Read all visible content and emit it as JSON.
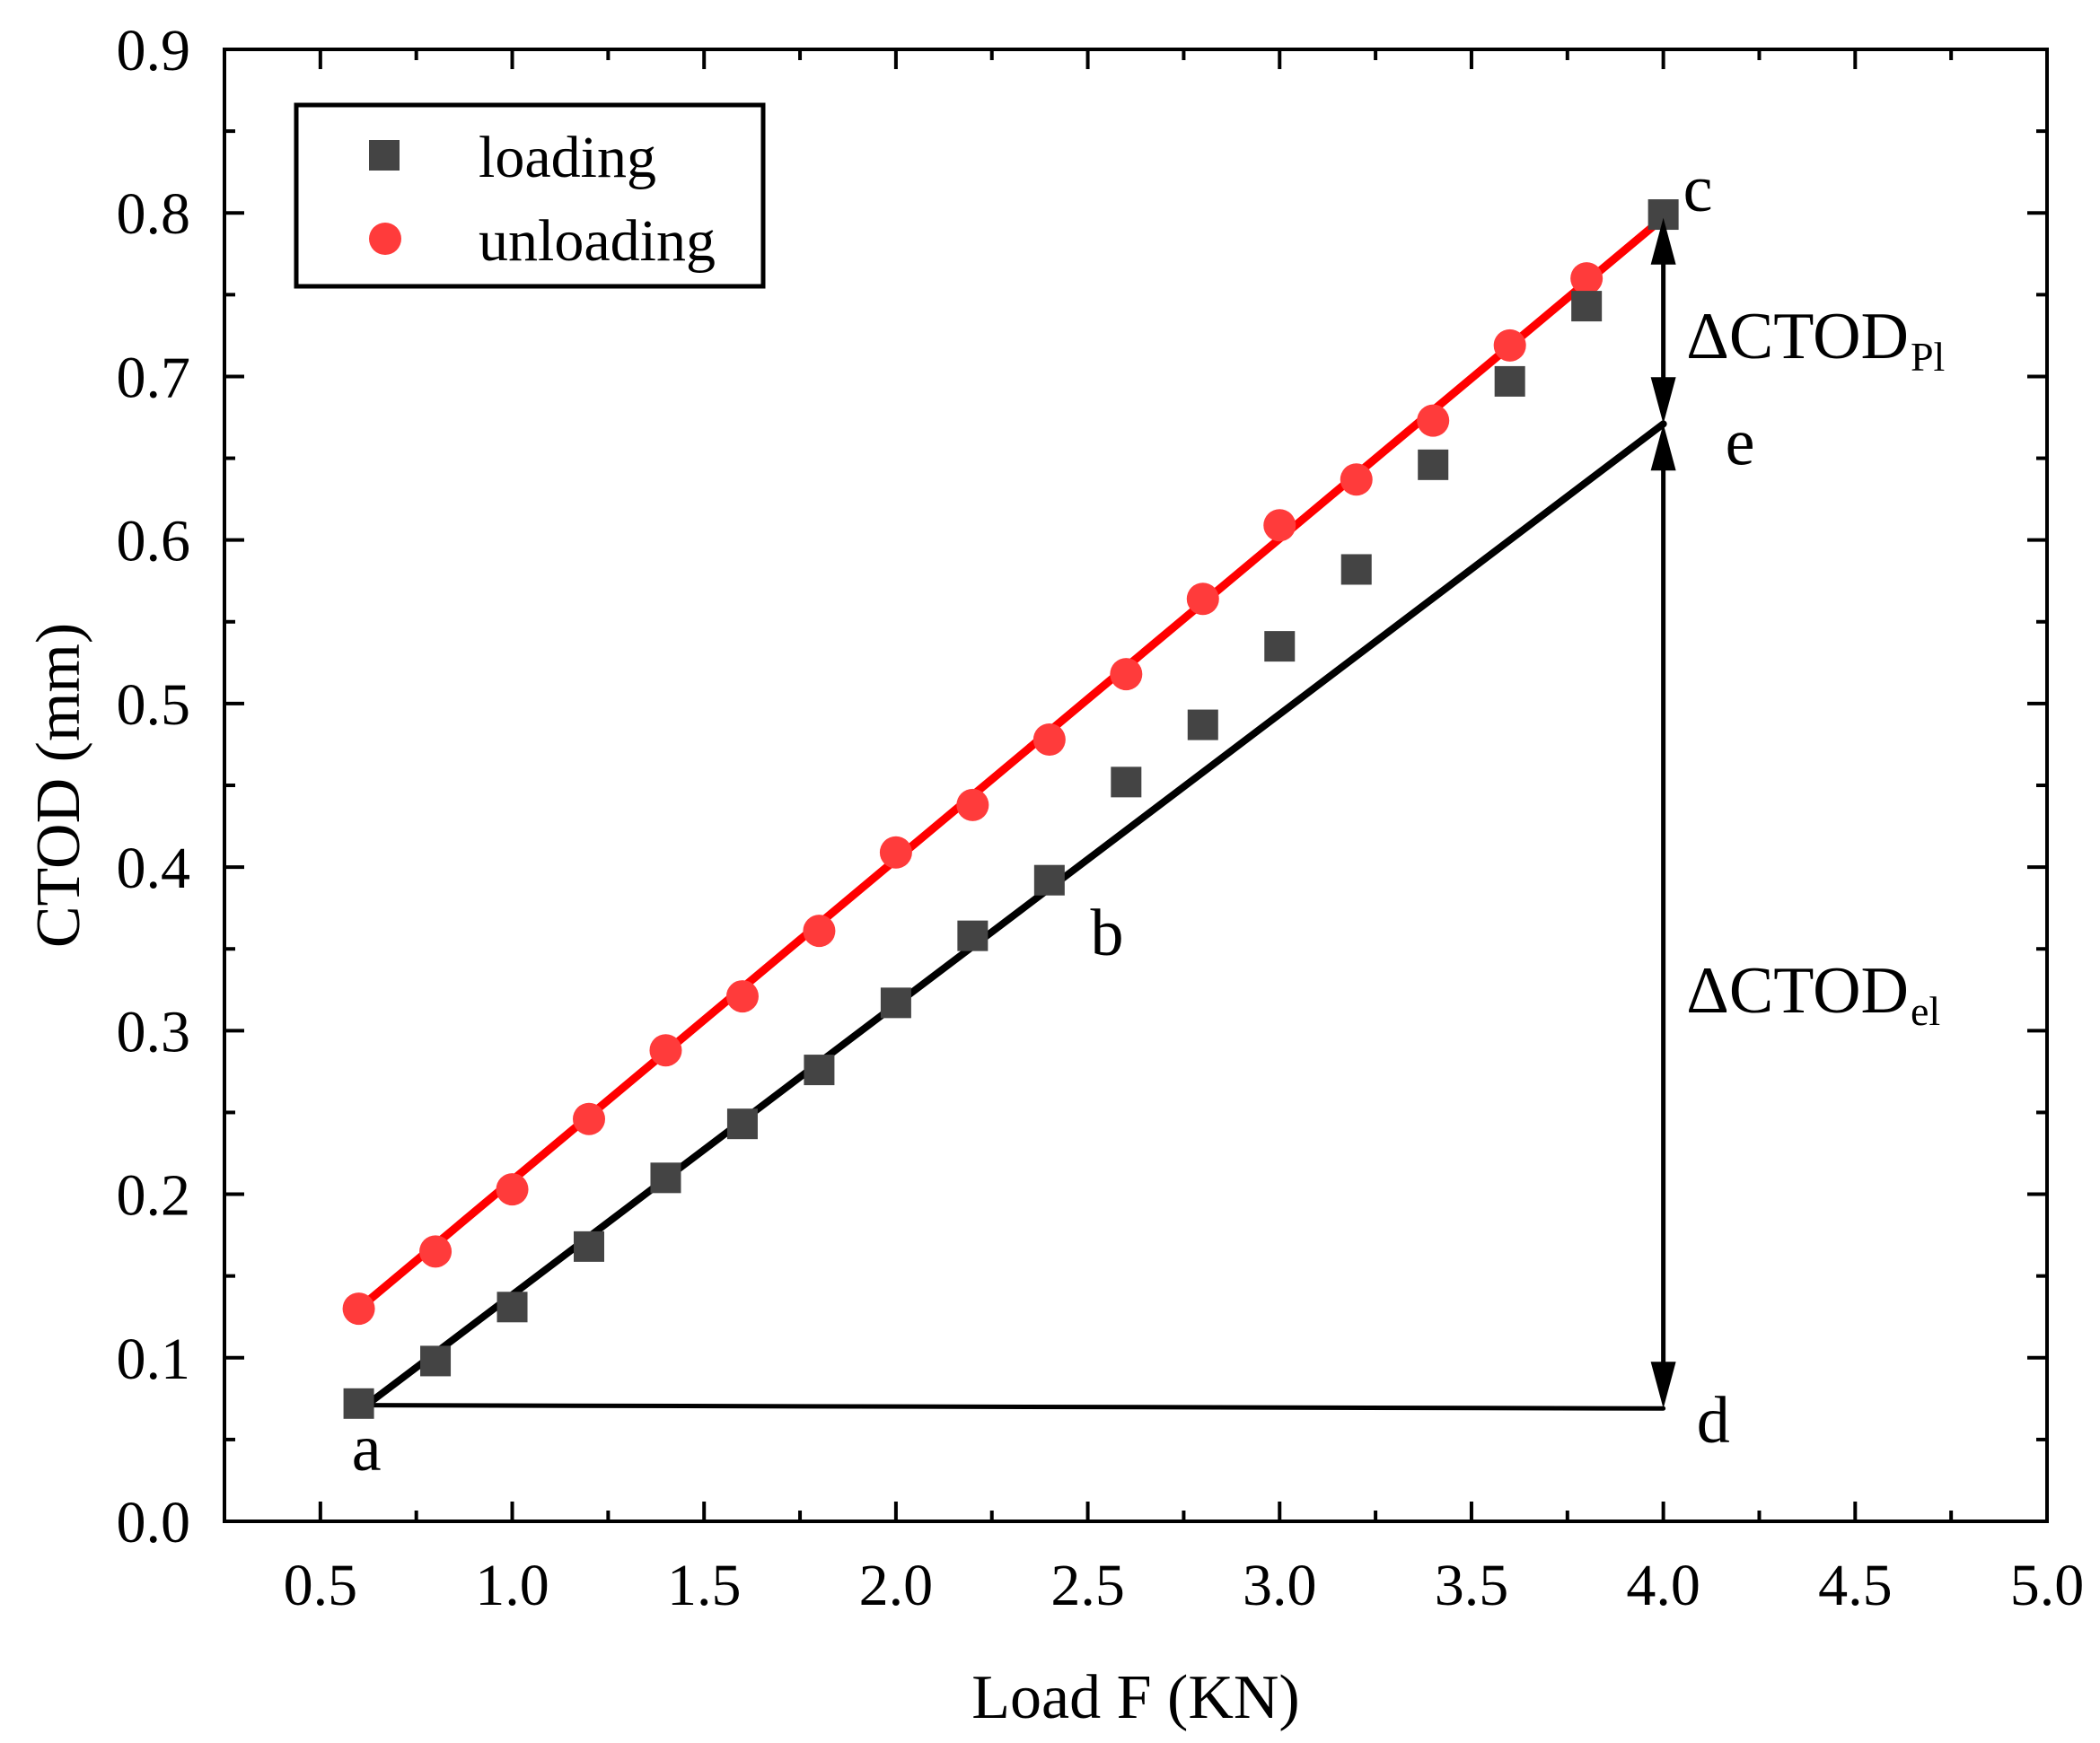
{
  "chart_data": {
    "type": "scatter",
    "title": "",
    "xlabel": "Load F (KN)",
    "ylabel": "CTOD (mm)",
    "xlim": [
      0.25,
      5.0
    ],
    "ylim": [
      0.0,
      0.9
    ],
    "x_ticks": [
      0.5,
      1.0,
      1.5,
      2.0,
      2.5,
      3.0,
      3.5,
      4.0,
      4.5,
      5.0
    ],
    "x_tick_labels": [
      "0.5",
      "1.0",
      "1.5",
      "2.0",
      "2.5",
      "3.0",
      "3.5",
      "4.0",
      "4.5",
      "5.0"
    ],
    "y_ticks": [
      0.0,
      0.1,
      0.2,
      0.3,
      0.4,
      0.5,
      0.6,
      0.7,
      0.8,
      0.9
    ],
    "y_tick_labels": [
      "0.0",
      "0.1",
      "0.2",
      "0.3",
      "0.4",
      "0.5",
      "0.6",
      "0.7",
      "0.8",
      "0.9"
    ],
    "legend_position": "top-left",
    "series": [
      {
        "name": "loading",
        "marker": "square",
        "color": "#444444",
        "x": [
          0.6,
          0.8,
          1.0,
          1.2,
          1.4,
          1.6,
          1.8,
          2.0,
          2.2,
          2.4,
          2.6,
          2.8,
          3.0,
          3.2,
          3.4,
          3.6,
          3.8,
          4.0
        ],
        "y": [
          0.072,
          0.098,
          0.131,
          0.168,
          0.21,
          0.243,
          0.276,
          0.317,
          0.358,
          0.392,
          0.452,
          0.487,
          0.535,
          0.582,
          0.646,
          0.697,
          0.743,
          0.799
        ]
      },
      {
        "name": "unloading",
        "marker": "circle",
        "color": "#ff3b3b",
        "x": [
          0.6,
          0.8,
          1.0,
          1.2,
          1.4,
          1.6,
          1.8,
          2.0,
          2.2,
          2.4,
          2.6,
          2.8,
          3.0,
          3.2,
          3.4,
          3.6,
          3.8
        ],
        "y": [
          0.13,
          0.165,
          0.203,
          0.246,
          0.288,
          0.321,
          0.361,
          0.409,
          0.438,
          0.478,
          0.518,
          0.564,
          0.609,
          0.637,
          0.673,
          0.719,
          0.76
        ]
      }
    ],
    "fit_lines": [
      {
        "name": "unloading fit",
        "color": "#ff0000",
        "x": [
          0.6,
          4.0
        ],
        "y": [
          0.13,
          0.797
        ]
      },
      {
        "name": "elastic line",
        "color": "#000000",
        "x": [
          0.62,
          4.0
        ],
        "y": [
          0.071,
          0.671
        ]
      },
      {
        "name": "baseline",
        "color": "#000000",
        "x": [
          0.62,
          4.0
        ],
        "y": [
          0.071,
          0.069
        ]
      }
    ],
    "arrows": [
      {
        "name": "delta-ctod-pl",
        "x": 4.0,
        "y_from": 0.671,
        "y_to": 0.797
      },
      {
        "name": "delta-ctod-el",
        "x": 4.0,
        "y_from": 0.069,
        "y_to": 0.671
      }
    ],
    "annotations": {
      "a": {
        "text": "a",
        "x": 0.62,
        "y": 0.045
      },
      "b": {
        "text": "b",
        "x": 2.55,
        "y": 0.36
      },
      "c": {
        "text": "c",
        "x": 4.09,
        "y": 0.815
      },
      "d": {
        "text": "d",
        "x": 4.13,
        "y": 0.062
      },
      "e": {
        "text": "e",
        "x": 4.2,
        "y": 0.66
      },
      "delta_pl": {
        "text": "ΔCTOD",
        "sub": "Pl",
        "x": 4.06,
        "y": 0.725
      },
      "delta_el": {
        "text": "ΔCTOD",
        "sub": "el",
        "x": 4.06,
        "y": 0.325
      }
    }
  }
}
